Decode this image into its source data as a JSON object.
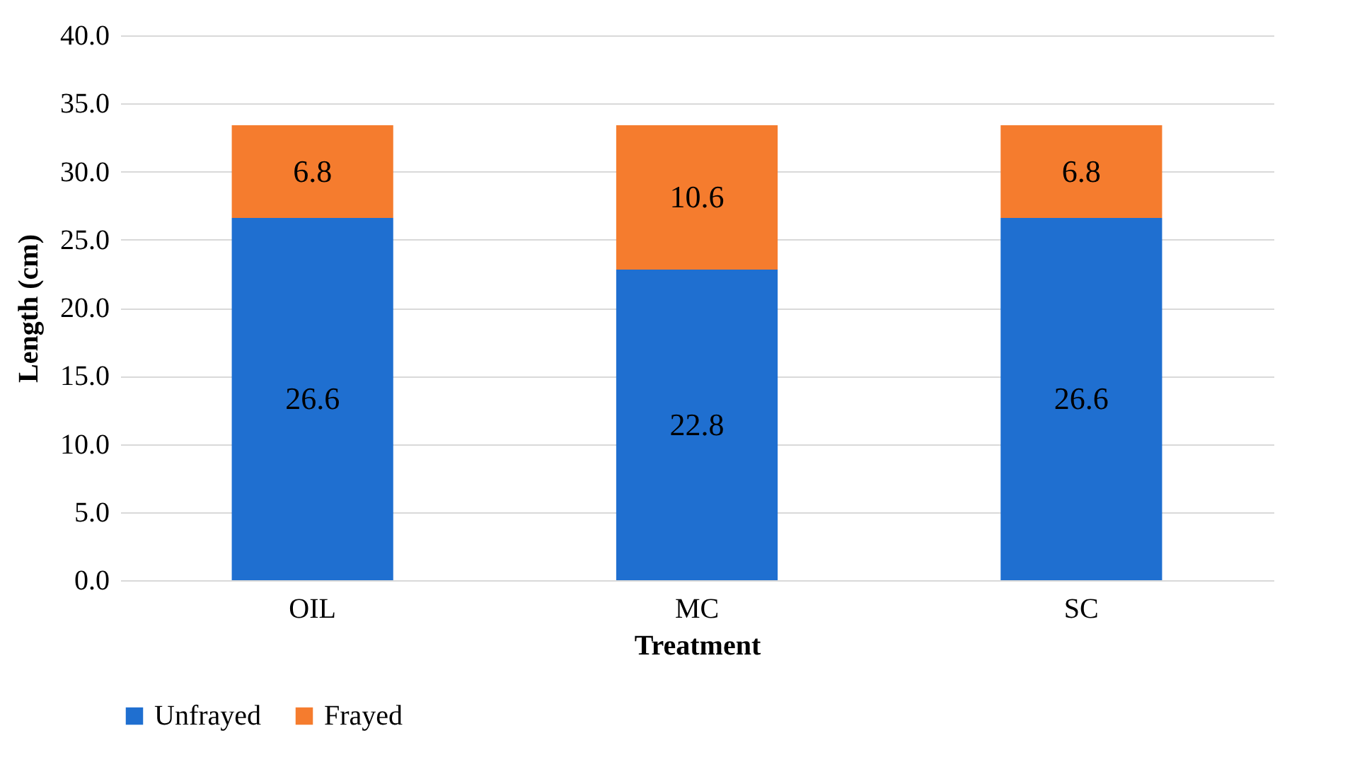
{
  "chart_data": {
    "type": "bar",
    "stacked": true,
    "xlabel": "Treatment",
    "ylabel": "Length (cm)",
    "categories": [
      "OIL",
      "MC",
      "SC"
    ],
    "series": [
      {
        "name": "Unfrayed",
        "color": "#1f6fd0",
        "values": [
          26.6,
          22.8,
          26.6
        ]
      },
      {
        "name": "Frayed",
        "color": "#f57c2e",
        "values": [
          6.8,
          10.6,
          6.8
        ]
      }
    ],
    "ylim": [
      0,
      40
    ],
    "yticks": [
      {
        "value": 0,
        "label": "0.0"
      },
      {
        "value": 5,
        "label": "5.0"
      },
      {
        "value": 10,
        "label": "10.0"
      },
      {
        "value": 15,
        "label": "15.0"
      },
      {
        "value": 20,
        "label": "20.0"
      },
      {
        "value": 25,
        "label": "25.0"
      },
      {
        "value": 30,
        "label": "30.0"
      },
      {
        "value": 35,
        "label": "35.0"
      },
      {
        "value": 40,
        "label": "40.0"
      }
    ],
    "grid": "y",
    "legend": "bottom",
    "data_labels": true
  }
}
